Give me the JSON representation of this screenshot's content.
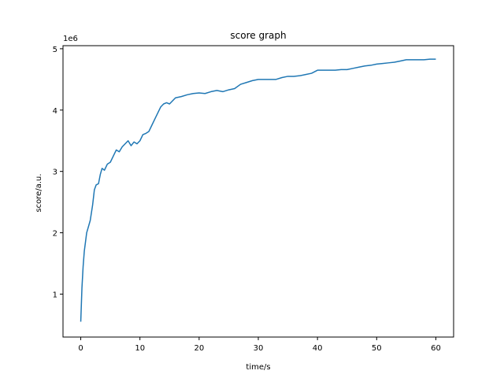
{
  "chart_data": {
    "type": "line",
    "title": "score graph",
    "xlabel": "time/s",
    "ylabel": "score/a.u.",
    "y_offset_label": "1e6",
    "xlim": [
      -3,
      63
    ],
    "ylim": [
      0.3,
      5.05
    ],
    "y_scale_note": "y values in units of 1e6",
    "xticks": [
      0,
      10,
      20,
      30,
      40,
      50,
      60
    ],
    "xtick_labels": [
      "0",
      "10",
      "20",
      "30",
      "40",
      "50",
      "60"
    ],
    "yticks": [
      1,
      2,
      3,
      4,
      5
    ],
    "ytick_labels": [
      "1",
      "2",
      "3",
      "4",
      "5"
    ],
    "grid": false,
    "line_color": "#1f77b4",
    "series": [
      {
        "x": [
          0,
          0.2,
          0.4,
          0.6,
          0.8,
          1.0,
          1.3,
          1.6,
          2.0,
          2.3,
          2.6,
          3.0,
          3.3,
          3.6,
          4.0,
          4.5,
          5.0,
          5.5,
          6.0,
          6.5,
          7.0,
          7.5,
          8.0,
          8.5,
          9.0,
          9.5,
          10.0,
          10.5,
          11.0,
          11.5,
          12.0,
          12.5,
          13.0,
          13.5,
          14.0,
          14.5,
          15.0,
          16.0,
          17.0,
          18.0,
          19.0,
          20.0,
          21.0,
          22.0,
          23.0,
          24.0,
          25.0,
          26.0,
          27.0,
          28.0,
          29.0,
          30.0,
          31.0,
          32.0,
          33.0,
          34.0,
          35.0,
          36.0,
          37.0,
          38.0,
          39.0,
          40.0,
          41.0,
          42.0,
          43.0,
          44.0,
          45.0,
          46.0,
          47.0,
          48.0,
          49.0,
          50.0,
          51.0,
          52.0,
          53.0,
          54.0,
          55.0,
          56.0,
          57.0,
          58.0,
          59.0,
          60.0
        ],
        "y": [
          0.55,
          1.1,
          1.45,
          1.7,
          1.85,
          2.0,
          2.1,
          2.2,
          2.45,
          2.7,
          2.78,
          2.8,
          2.95,
          3.05,
          3.02,
          3.12,
          3.15,
          3.25,
          3.35,
          3.32,
          3.4,
          3.45,
          3.5,
          3.42,
          3.48,
          3.45,
          3.5,
          3.6,
          3.62,
          3.65,
          3.75,
          3.85,
          3.95,
          4.05,
          4.1,
          4.12,
          4.1,
          4.2,
          4.22,
          4.25,
          4.27,
          4.28,
          4.27,
          4.3,
          4.32,
          4.3,
          4.33,
          4.35,
          4.42,
          4.45,
          4.48,
          4.5,
          4.5,
          4.5,
          4.5,
          4.53,
          4.55,
          4.55,
          4.56,
          4.58,
          4.6,
          4.65,
          4.65,
          4.65,
          4.65,
          4.66,
          4.66,
          4.68,
          4.7,
          4.72,
          4.73,
          4.75,
          4.76,
          4.77,
          4.78,
          4.8,
          4.82,
          4.82,
          4.82,
          4.82,
          4.83,
          4.83
        ]
      }
    ]
  }
}
